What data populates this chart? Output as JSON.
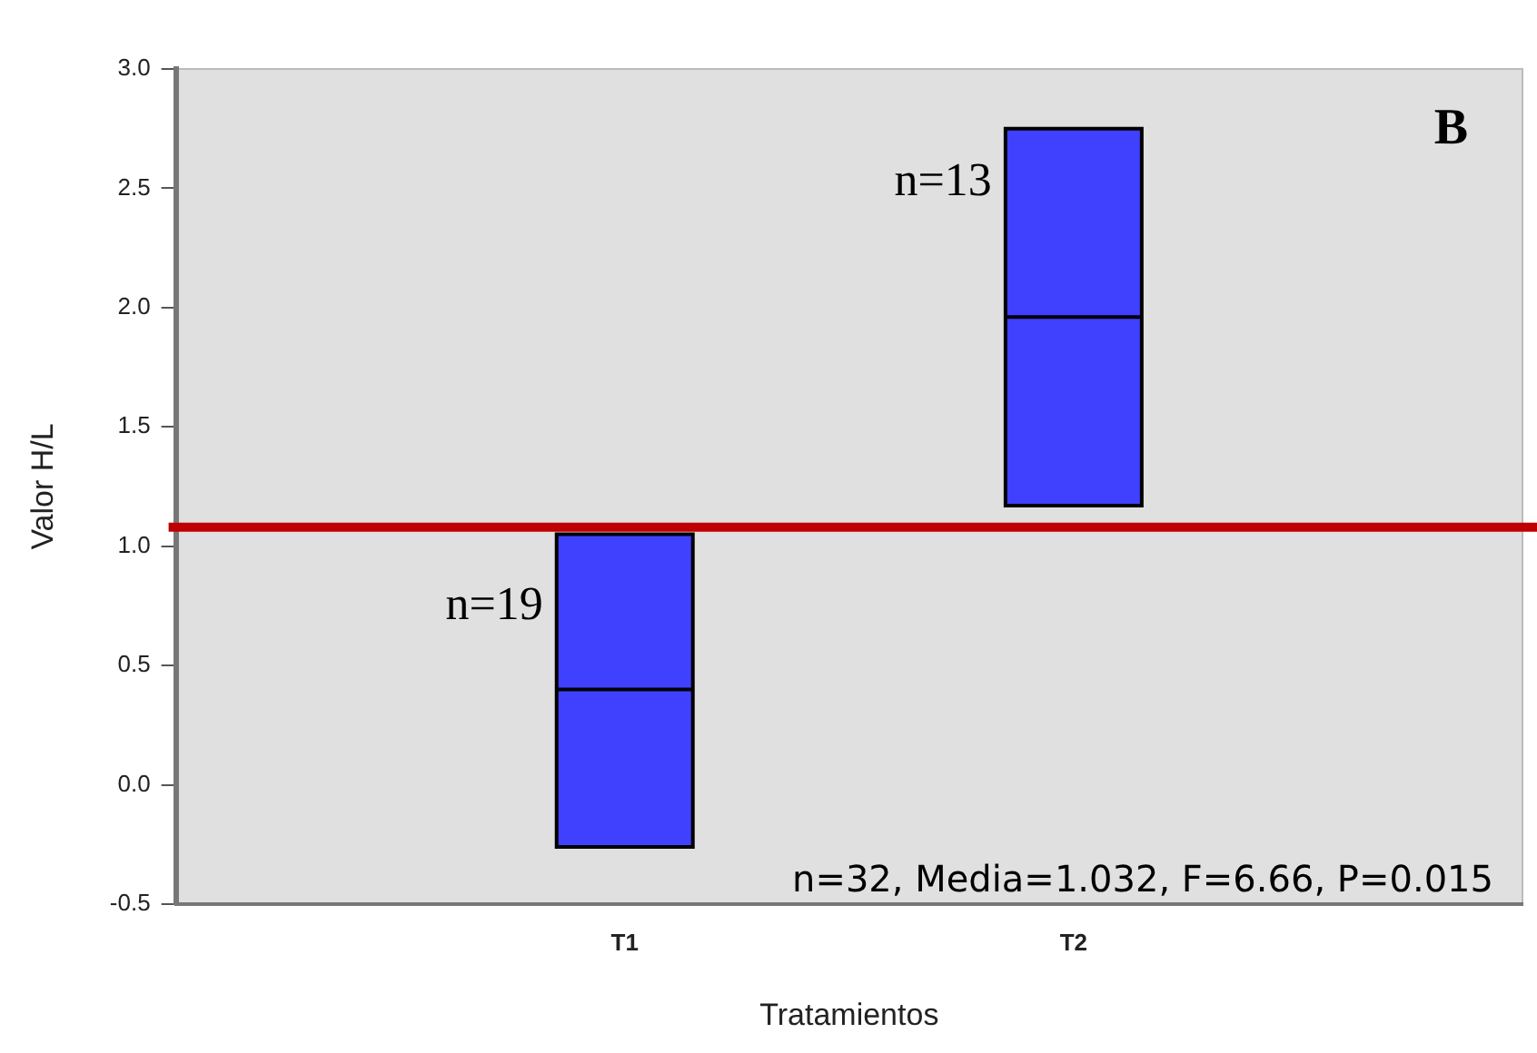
{
  "chart_data": {
    "type": "box",
    "categories": [
      "T1",
      "T2"
    ],
    "xlabel": "Tratamientos",
    "ylabel": "Valor H/L",
    "ylim": [
      -0.5,
      3.0
    ],
    "yticks": [
      {
        "value": -0.5,
        "label": "-0.5"
      },
      {
        "value": 0,
        "label": "0.0"
      },
      {
        "value": 0.5,
        "label": "0.5"
      },
      {
        "value": 1,
        "label": "1.0"
      },
      {
        "value": 1.5,
        "label": "1.5"
      },
      {
        "value": 2,
        "label": "2.0"
      },
      {
        "value": 2.5,
        "label": "2.5"
      },
      {
        "value": 3,
        "label": "3.0"
      }
    ],
    "series": [
      {
        "color": "#4040ff",
        "boxes": [
          {
            "low": -0.26,
            "q1": -0.26,
            "median": 0.4,
            "q3": 1.05,
            "high": 1.05
          },
          {
            "low": 1.17,
            "q1": 1.17,
            "median": 1.96,
            "q3": 2.75,
            "high": 2.75
          }
        ]
      }
    ],
    "ref_lines": [
      {
        "axis": "y",
        "value": 1.08,
        "color": "#c00000"
      }
    ],
    "annotations": [
      "n=19",
      "n=13",
      "B",
      "n=32, Media=1.032, F=6.66, P=0.015"
    ],
    "grid": false,
    "legend": false
  }
}
